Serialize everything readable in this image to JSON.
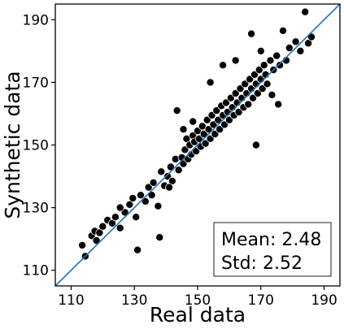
{
  "chart_data": {
    "type": "scatter",
    "title": "",
    "xlabel": "Real data",
    "ylabel": "Synthetic data",
    "xlim": [
      105,
      195
    ],
    "ylim": [
      105,
      195
    ],
    "xticks": [
      110,
      130,
      150,
      170,
      190
    ],
    "yticks": [
      110,
      130,
      150,
      170,
      190
    ],
    "grid": false,
    "marker_color": "#000000",
    "marker_edge_color": "#ffffff",
    "reference_line": {
      "type": "identity",
      "color": "#1f77b4"
    },
    "annotation": {
      "lines": [
        "Mean: 2.48",
        "Std: 2.52"
      ],
      "location": "lower-right"
    },
    "series": [
      {
        "points": [
          [
            113.5,
            118.0
          ],
          [
            114.5,
            114.5
          ],
          [
            116.5,
            121.0
          ],
          [
            117.5,
            122.5
          ],
          [
            118.0,
            119.5
          ],
          [
            119.0,
            122.0
          ],
          [
            120.0,
            124.0
          ],
          [
            121.5,
            126.0
          ],
          [
            123.0,
            125.0
          ],
          [
            124.0,
            127.0
          ],
          [
            125.5,
            123.5
          ],
          [
            127.0,
            128.5
          ],
          [
            128.5,
            131.0
          ],
          [
            129.5,
            133.0
          ],
          [
            130.5,
            127.0
          ],
          [
            131.0,
            116.5
          ],
          [
            132.0,
            134.0
          ],
          [
            133.5,
            132.0
          ],
          [
            134.5,
            136.5
          ],
          [
            135.5,
            134.0
          ],
          [
            136.0,
            138.0
          ],
          [
            137.5,
            130.5
          ],
          [
            138.0,
            120.5
          ],
          [
            138.5,
            141.5
          ],
          [
            139.5,
            137.0
          ],
          [
            140.5,
            140.0
          ],
          [
            141.5,
            143.0
          ],
          [
            142.0,
            138.5
          ],
          [
            143.0,
            145.5
          ],
          [
            143.5,
            161.0
          ],
          [
            144.0,
            142.0
          ],
          [
            145.0,
            146.0
          ],
          [
            145.5,
            144.0
          ],
          [
            146.0,
            148.5
          ],
          [
            146.5,
            152.0
          ],
          [
            147.0,
            145.5
          ],
          [
            147.5,
            150.0
          ],
          [
            148.0,
            147.0
          ],
          [
            148.5,
            153.0
          ],
          [
            149.0,
            151.0
          ],
          [
            149.5,
            148.0
          ],
          [
            150.0,
            154.5
          ],
          [
            150.5,
            152.0
          ],
          [
            151.0,
            149.5
          ],
          [
            151.5,
            156.0
          ],
          [
            152.0,
            153.5
          ],
          [
            152.5,
            150.5
          ],
          [
            153.0,
            158.0
          ],
          [
            153.5,
            155.0
          ],
          [
            154.0,
            152.0
          ],
          [
            154.5,
            159.5
          ],
          [
            155.0,
            156.5
          ],
          [
            155.5,
            153.5
          ],
          [
            156.0,
            161.0
          ],
          [
            156.5,
            158.0
          ],
          [
            157.0,
            155.0
          ],
          [
            157.5,
            162.5
          ],
          [
            158.0,
            159.5
          ],
          [
            158.5,
            156.5
          ],
          [
            159.0,
            163.5
          ],
          [
            159.5,
            160.5
          ],
          [
            160.0,
            158.0
          ],
          [
            160.5,
            165.0
          ],
          [
            161.0,
            162.0
          ],
          [
            161.5,
            159.5
          ],
          [
            162.0,
            166.5
          ],
          [
            162.5,
            163.5
          ],
          [
            163.0,
            160.5
          ],
          [
            163.5,
            168.0
          ],
          [
            164.0,
            165.0
          ],
          [
            164.5,
            162.0
          ],
          [
            165.0,
            169.5
          ],
          [
            165.5,
            166.5
          ],
          [
            166.0,
            163.0
          ],
          [
            166.5,
            171.0
          ],
          [
            167.0,
            168.0
          ],
          [
            167.5,
            165.0
          ],
          [
            168.0,
            172.5
          ],
          [
            168.5,
            169.5
          ],
          [
            169.0,
            166.5
          ],
          [
            169.5,
            174.0
          ],
          [
            170.0,
            171.0
          ],
          [
            170.5,
            168.0
          ],
          [
            171.0,
            175.5
          ],
          [
            171.5,
            172.5
          ],
          [
            172.0,
            169.5
          ],
          [
            173.0,
            177.0
          ],
          [
            173.5,
            166.0
          ],
          [
            174.0,
            174.0
          ],
          [
            175.0,
            178.5
          ],
          [
            176.0,
            175.5
          ],
          [
            177.0,
            186.5
          ],
          [
            178.0,
            177.0
          ],
          [
            179.0,
            181.0
          ],
          [
            181.0,
            183.0
          ],
          [
            182.5,
            180.0
          ],
          [
            184.0,
            192.5
          ],
          [
            185.0,
            182.5
          ],
          [
            186.0,
            184.5
          ],
          [
            167.0,
            185.5
          ],
          [
            154.0,
            170.0
          ],
          [
            148.5,
            157.5
          ],
          [
            168.5,
            150.0
          ],
          [
            175.5,
            163.0
          ],
          [
            170.0,
            180.0
          ],
          [
            158.0,
            175.5
          ],
          [
            162.0,
            177.0
          ],
          [
            145.5,
            155.0
          ],
          [
            141.0,
            136.5
          ],
          [
            125.5,
            130.0
          ]
        ]
      }
    ]
  }
}
